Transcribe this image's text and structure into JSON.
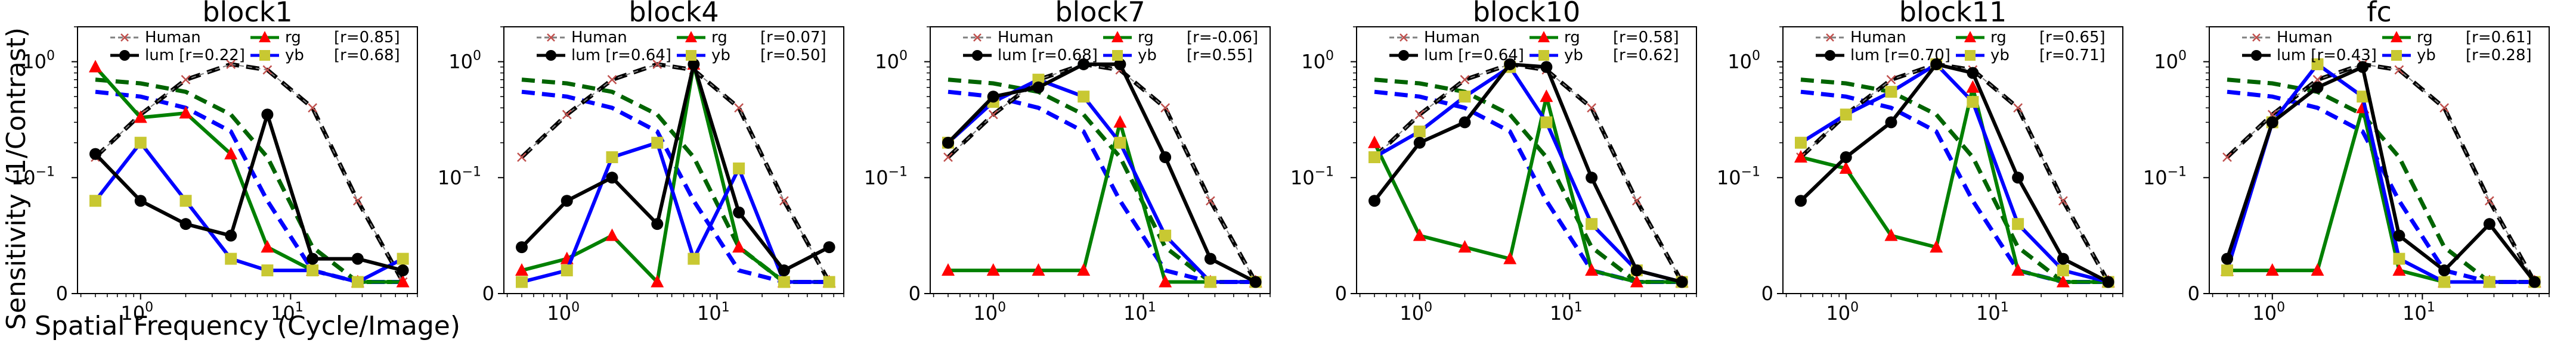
{
  "figure": {
    "ylabel": "Sensitivity (1/Contrast)",
    "xlabel": "Spatial Frequency (Cycle/Image)"
  },
  "colors": {
    "human": "#808080",
    "human_marker": "#c0504d",
    "lum": "#000000",
    "rg": "#008000",
    "rg_marker": "#ff0000",
    "yb": "#0000ff",
    "yb_marker": "#c8c832",
    "lum_ref": "#000000",
    "rg_ref": "#006400",
    "yb_ref": "#0000ff"
  },
  "chart_data": [
    {
      "type": "line",
      "title": "block1",
      "xscale": "log",
      "yscale": "symlog",
      "x": [
        0.5,
        1,
        2,
        4,
        7,
        14,
        28,
        56
      ],
      "ylim": [
        0,
        2
      ],
      "legend": [
        "Human",
        "lum [r=0.22]",
        "rg",
        "[r=0.85]",
        "yb",
        "[r=0.68]"
      ],
      "series": [
        {
          "name": "lum",
          "values": [
            0.16,
            0.08,
            0.06,
            0.05,
            0.35,
            0.03,
            0.03,
            0.02
          ]
        },
        {
          "name": "rg",
          "values": [
            0.9,
            0.33,
            0.36,
            0.16,
            0.04,
            0.02,
            0.01,
            0.01
          ]
        },
        {
          "name": "yb",
          "values": [
            0.08,
            0.2,
            0.08,
            0.03,
            0.02,
            0.02,
            0.01,
            0.03
          ]
        }
      ]
    },
    {
      "type": "line",
      "title": "block4",
      "xscale": "log",
      "yscale": "symlog",
      "x": [
        0.5,
        1,
        2,
        4,
        7,
        14,
        28,
        56
      ],
      "ylim": [
        0,
        2
      ],
      "legend": [
        "Human",
        "lum [r=0.64]",
        "rg",
        "[r=0.07]",
        "yb",
        "[r=0.50]"
      ],
      "series": [
        {
          "name": "lum",
          "values": [
            0.04,
            0.08,
            0.1,
            0.06,
            0.95,
            0.07,
            0.02,
            0.04
          ]
        },
        {
          "name": "rg",
          "values": [
            0.02,
            0.03,
            0.05,
            0.01,
            0.95,
            0.04,
            0.01,
            0.01
          ]
        },
        {
          "name": "yb",
          "values": [
            0.01,
            0.02,
            0.15,
            0.2,
            0.03,
            0.12,
            0.01,
            0.01
          ]
        }
      ]
    },
    {
      "type": "line",
      "title": "block7",
      "xscale": "log",
      "yscale": "symlog",
      "x": [
        0.5,
        1,
        2,
        4,
        7,
        14,
        28,
        56
      ],
      "ylim": [
        0,
        2
      ],
      "legend": [
        "Human",
        "lum [r=0.68]",
        "rg",
        "[r=-0.06]",
        "yb",
        "[r=0.55]"
      ],
      "series": [
        {
          "name": "lum",
          "values": [
            0.2,
            0.5,
            0.6,
            0.95,
            0.95,
            0.15,
            0.03,
            0.01
          ]
        },
        {
          "name": "rg",
          "values": [
            0.02,
            0.02,
            0.02,
            0.02,
            0.3,
            0.01,
            0.01,
            0.01
          ]
        },
        {
          "name": "yb",
          "values": [
            0.2,
            0.45,
            0.7,
            0.5,
            0.2,
            0.05,
            0.01,
            0.01
          ]
        }
      ]
    },
    {
      "type": "line",
      "title": "block10",
      "xscale": "log",
      "yscale": "symlog",
      "x": [
        0.5,
        1,
        2,
        4,
        7,
        14,
        28,
        56
      ],
      "ylim": [
        0,
        2
      ],
      "legend": [
        "Human",
        "lum [r=0.64]",
        "rg",
        "[r=0.58]",
        "yb",
        "[r=0.62]"
      ],
      "series": [
        {
          "name": "lum",
          "values": [
            0.08,
            0.2,
            0.3,
            0.95,
            0.9,
            0.1,
            0.02,
            0.01
          ]
        },
        {
          "name": "rg",
          "values": [
            0.2,
            0.05,
            0.04,
            0.03,
            0.5,
            0.02,
            0.01,
            0.01
          ]
        },
        {
          "name": "yb",
          "values": [
            0.15,
            0.25,
            0.5,
            0.9,
            0.3,
            0.06,
            0.02,
            0.01
          ]
        }
      ]
    },
    {
      "type": "line",
      "title": "block11",
      "xscale": "log",
      "yscale": "symlog",
      "x": [
        0.5,
        1,
        2,
        4,
        7,
        14,
        28,
        56
      ],
      "ylim": [
        0,
        2
      ],
      "legend": [
        "Human",
        "lum [r=0.70]",
        "rg",
        "[r=0.65]",
        "yb",
        "[r=0.71]"
      ],
      "series": [
        {
          "name": "lum",
          "values": [
            0.08,
            0.15,
            0.3,
            0.95,
            0.8,
            0.1,
            0.03,
            0.01
          ]
        },
        {
          "name": "rg",
          "values": [
            0.15,
            0.12,
            0.05,
            0.04,
            0.6,
            0.02,
            0.01,
            0.01
          ]
        },
        {
          "name": "yb",
          "values": [
            0.2,
            0.35,
            0.55,
            0.95,
            0.45,
            0.06,
            0.02,
            0.01
          ]
        }
      ]
    },
    {
      "type": "line",
      "title": "fc",
      "xscale": "log",
      "yscale": "symlog",
      "x": [
        0.5,
        1,
        2,
        4,
        7,
        14,
        28,
        56
      ],
      "ylim": [
        0,
        2
      ],
      "legend": [
        "Human",
        "lum [r=0.43]",
        "rg",
        "[r=0.61]",
        "yb",
        "[r=0.28]"
      ],
      "series": [
        {
          "name": "lum",
          "values": [
            0.03,
            0.3,
            0.6,
            0.9,
            0.05,
            0.02,
            0.06,
            0.01
          ]
        },
        {
          "name": "rg",
          "values": [
            0.02,
            0.02,
            0.02,
            0.4,
            0.02,
            0.01,
            0.01,
            0.01
          ]
        },
        {
          "name": "yb",
          "values": [
            0.02,
            0.3,
            0.95,
            0.5,
            0.03,
            0.01,
            0.01,
            0.01
          ]
        }
      ]
    }
  ],
  "reference_curves": {
    "human": {
      "x": [
        0.5,
        1,
        2,
        4,
        7,
        14,
        28,
        56
      ],
      "values": [
        0.15,
        0.35,
        0.7,
        0.95,
        0.85,
        0.4,
        0.08,
        0.01
      ]
    },
    "lum_ref": {
      "x": [
        0.5,
        1,
        2,
        4,
        7,
        14,
        28,
        56
      ],
      "values": [
        0.15,
        0.35,
        0.7,
        0.95,
        0.85,
        0.4,
        0.08,
        0.01
      ]
    },
    "rg_ref": {
      "x": [
        0.5,
        1,
        2,
        4,
        7,
        14,
        28,
        56
      ],
      "values": [
        0.7,
        0.65,
        0.55,
        0.35,
        0.15,
        0.04,
        0.01,
        0.01
      ]
    },
    "yb_ref": {
      "x": [
        0.5,
        1,
        2,
        4,
        7,
        14,
        28,
        56
      ],
      "values": [
        0.55,
        0.5,
        0.4,
        0.25,
        0.08,
        0.02,
        0.01,
        0.01
      ]
    }
  },
  "axes_ticks": {
    "x_major": [
      {
        "value": 1,
        "base": "10",
        "exp": "0"
      },
      {
        "value": 10,
        "base": "10",
        "exp": "1"
      }
    ],
    "y_major": [
      {
        "value": 0,
        "label": "0"
      },
      {
        "value": 0.1,
        "base": "10",
        "exp": "−1"
      },
      {
        "value": 1,
        "base": "10",
        "exp": "0"
      }
    ]
  }
}
